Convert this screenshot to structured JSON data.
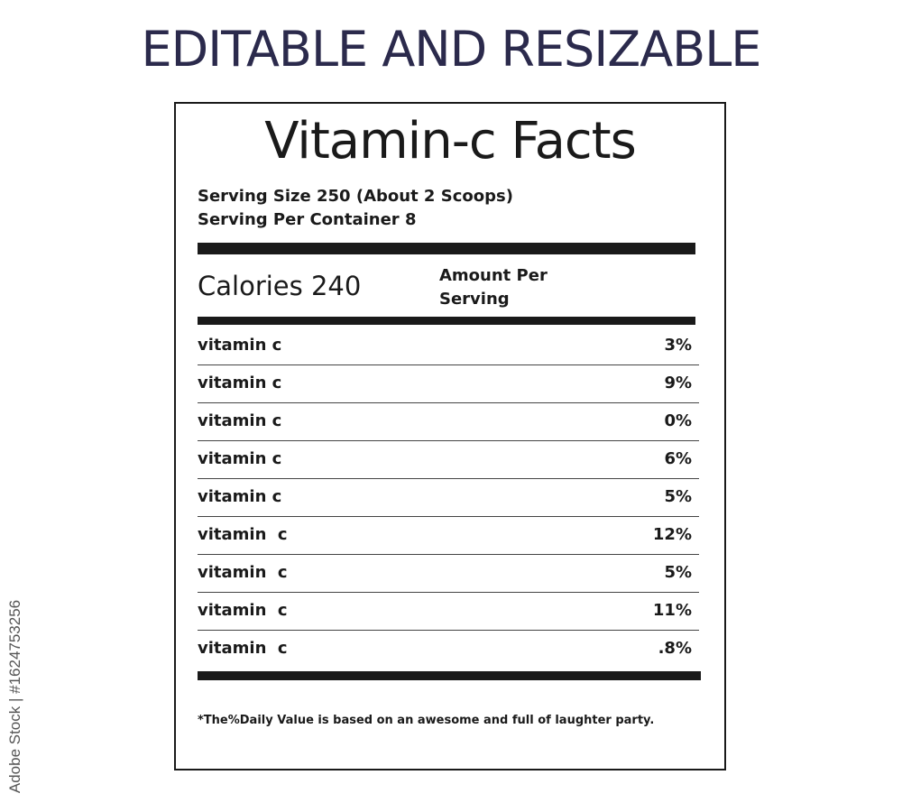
{
  "headline": "EDITABLE AND RESIZABLE",
  "label": {
    "title": "Vitamin-c Facts",
    "serving_size": "Serving Size 250 (About 2 Scoops)",
    "servings_per_container": "Serving Per Container 8",
    "calories": "Calories 240",
    "amount_per_serving": "Amount Per Serving",
    "nutrients": [
      {
        "name": "vitamin c",
        "value": "3%"
      },
      {
        "name": "vitamin c",
        "value": "9%"
      },
      {
        "name": "vitamin c",
        "value": "0%"
      },
      {
        "name": "vitamin c",
        "value": "6%"
      },
      {
        "name": "vitamin c",
        "value": "5%"
      },
      {
        "name": "vitamin  c",
        "value": "12%"
      },
      {
        "name": "vitamin  c",
        "value": "5%"
      },
      {
        "name": "vitamin  c",
        "value": "11%"
      },
      {
        "name": "vitamin  c",
        "value": ".8%"
      }
    ],
    "footnote": "*The%Daily Value is based on an awesome and full of laughter party."
  },
  "watermark": "Adobe Stock | #1624753256",
  "colors": {
    "headline": "#2b2a4c",
    "ink": "#1a1a1a"
  }
}
